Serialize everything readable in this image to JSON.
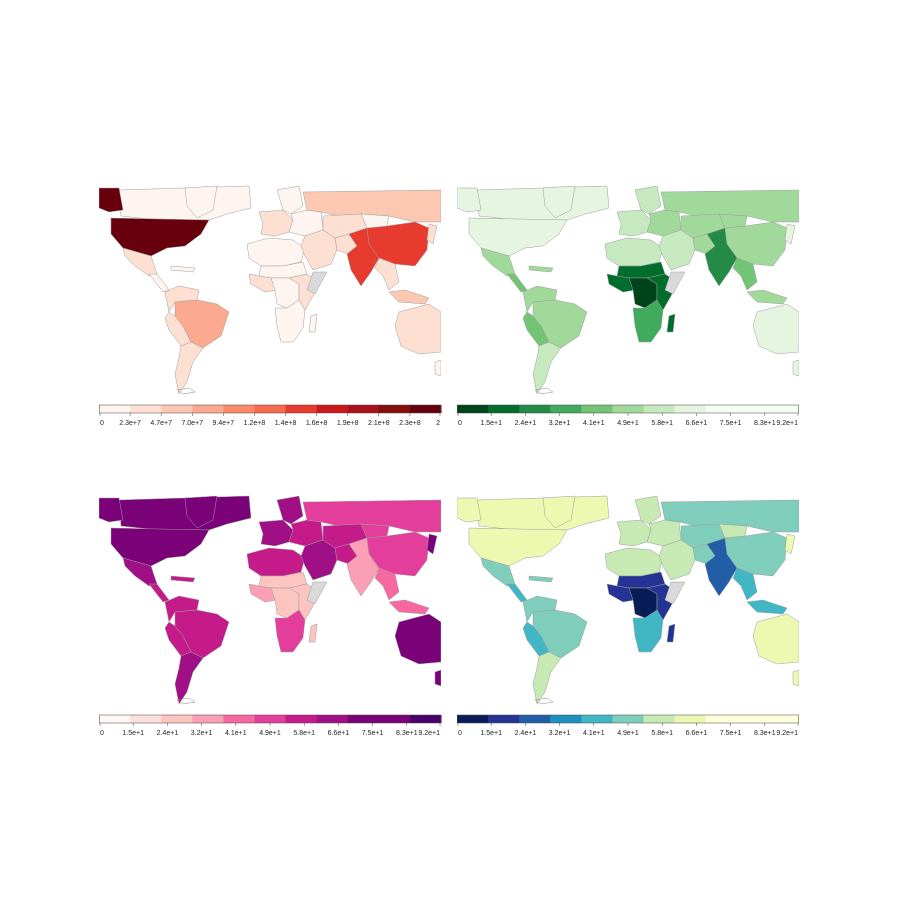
{
  "panels": [
    {
      "id": "total",
      "scheme": "reds",
      "colors": {
        "bins": [
          "#fff5f0",
          "#fee0d2",
          "#fcc8b2",
          "#fcaa8f",
          "#fc8a6a",
          "#f76a4b",
          "#e63b2e",
          "#cb181d",
          "#ab1118",
          "#880d0d",
          "#67000d"
        ],
        "ocean": "#ffffff",
        "border": "#9e9e9e",
        "missing": "#d9d9d9"
      },
      "tick_labels": [
        "0",
        "2.3e+7",
        "4.7e+7",
        "7.0e+7",
        "9.4e+7",
        "1.2e+8",
        "1.4e+8",
        "1.6e+8",
        "1.9e+8",
        "2.1e+8",
        "2.3e+8",
        "2"
      ],
      "regions": [
        {
          "name": "canada",
          "bin": 0
        },
        {
          "name": "alaska",
          "bin": 10
        },
        {
          "name": "greenland",
          "bin": 0
        },
        {
          "name": "usa",
          "bin": 10
        },
        {
          "name": "mexico",
          "bin": 1
        },
        {
          "name": "central-america",
          "bin": 0
        },
        {
          "name": "caribbean",
          "bin": 0
        },
        {
          "name": "colombia-venezuela",
          "bin": 1
        },
        {
          "name": "brazil",
          "bin": 3
        },
        {
          "name": "peru-bolivia",
          "bin": 1
        },
        {
          "name": "southern-cone",
          "bin": 1
        },
        {
          "name": "western-europe",
          "bin": 1
        },
        {
          "name": "scandinavia",
          "bin": 0
        },
        {
          "name": "eastern-europe",
          "bin": 0
        },
        {
          "name": "russia",
          "bin": 2
        },
        {
          "name": "kazakhstan-central-asia",
          "bin": 1
        },
        {
          "name": "north-africa",
          "bin": 0
        },
        {
          "name": "sahel",
          "bin": 0
        },
        {
          "name": "west-africa",
          "bin": 1
        },
        {
          "name": "central-africa",
          "bin": 0
        },
        {
          "name": "east-africa",
          "bin": 1
        },
        {
          "name": "southern-africa",
          "bin": 0
        },
        {
          "name": "madagascar",
          "bin": 0
        },
        {
          "name": "middle-east",
          "bin": 1
        },
        {
          "name": "iran",
          "bin": 1
        },
        {
          "name": "south-asia",
          "bin": 6
        },
        {
          "name": "china",
          "bin": 6
        },
        {
          "name": "mongolia",
          "bin": 0
        },
        {
          "name": "southeast-asia",
          "bin": 1
        },
        {
          "name": "japan",
          "bin": 1
        },
        {
          "name": "indonesia",
          "bin": 2
        },
        {
          "name": "australia",
          "bin": 1
        },
        {
          "name": "new-zealand",
          "bin": 0
        },
        {
          "name": "somalia",
          "bin": -1
        }
      ]
    },
    {
      "id": "percent-a",
      "scheme": "greens-reversed",
      "colors": {
        "bins": [
          "#00441b",
          "#006d2c",
          "#238b45",
          "#41ab5d",
          "#74c476",
          "#a1d99b",
          "#c7e9c0",
          "#e5f5e0",
          "#f7fcf5",
          "#f7fcf5",
          "#f7fcf5"
        ],
        "ocean": "#ffffff",
        "border": "#9e9e9e",
        "missing": "#d9d9d9"
      },
      "tick_labels": [
        "0",
        "1.5e+1",
        "2.4e+1",
        "3.2e+1",
        "4.1e+1",
        "4.9e+1",
        "5.8e+1",
        "6.6e+1",
        "7.5e+1",
        "8.3e+1",
        "9.2e+1"
      ],
      "regions": [
        {
          "name": "canada",
          "bin": 7
        },
        {
          "name": "alaska",
          "bin": 7
        },
        {
          "name": "greenland",
          "bin": 7
        },
        {
          "name": "usa",
          "bin": 7
        },
        {
          "name": "mexico",
          "bin": 5
        },
        {
          "name": "central-america",
          "bin": 4
        },
        {
          "name": "caribbean",
          "bin": 5
        },
        {
          "name": "colombia-venezuela",
          "bin": 5
        },
        {
          "name": "brazil",
          "bin": 5
        },
        {
          "name": "peru-bolivia",
          "bin": 4
        },
        {
          "name": "southern-cone",
          "bin": 6
        },
        {
          "name": "western-europe",
          "bin": 6
        },
        {
          "name": "scandinavia",
          "bin": 6
        },
        {
          "name": "eastern-europe",
          "bin": 5
        },
        {
          "name": "russia",
          "bin": 5
        },
        {
          "name": "kazakhstan-central-asia",
          "bin": 5
        },
        {
          "name": "north-africa",
          "bin": 6
        },
        {
          "name": "sahel",
          "bin": 1
        },
        {
          "name": "west-africa",
          "bin": 1
        },
        {
          "name": "central-africa",
          "bin": 0
        },
        {
          "name": "east-africa",
          "bin": 1
        },
        {
          "name": "southern-africa",
          "bin": 3
        },
        {
          "name": "madagascar",
          "bin": 1
        },
        {
          "name": "middle-east",
          "bin": 6
        },
        {
          "name": "iran",
          "bin": 5
        },
        {
          "name": "south-asia",
          "bin": 2
        },
        {
          "name": "china",
          "bin": 5
        },
        {
          "name": "mongolia",
          "bin": 5
        },
        {
          "name": "southeast-asia",
          "bin": 4
        },
        {
          "name": "japan",
          "bin": 7
        },
        {
          "name": "indonesia",
          "bin": 5
        },
        {
          "name": "australia",
          "bin": 7
        },
        {
          "name": "new-zealand",
          "bin": 7
        },
        {
          "name": "somalia",
          "bin": -1
        }
      ]
    },
    {
      "id": "percent-b",
      "scheme": "rdpu",
      "colors": {
        "bins": [
          "#fff7f3",
          "#fde0dd",
          "#fcc5c0",
          "#fa9fb5",
          "#f768a1",
          "#e33e9c",
          "#c51b8a",
          "#a00f86",
          "#7a0177",
          "#7a0177",
          "#49006a"
        ],
        "ocean": "#ffffff",
        "border": "#9e9e9e",
        "missing": "#d9d9d9"
      },
      "tick_labels": [
        "0",
        "1.5e+1",
        "2.4e+1",
        "3.2e+1",
        "4.1e+1",
        "4.9e+1",
        "5.8e+1",
        "6.6e+1",
        "7.5e+1",
        "8.3e+1",
        "9.2e+1"
      ],
      "regions": [
        {
          "name": "canada",
          "bin": 8
        },
        {
          "name": "alaska",
          "bin": 8
        },
        {
          "name": "greenland",
          "bin": 8
        },
        {
          "name": "usa",
          "bin": 8
        },
        {
          "name": "mexico",
          "bin": 7
        },
        {
          "name": "central-america",
          "bin": 6
        },
        {
          "name": "caribbean",
          "bin": 6
        },
        {
          "name": "colombia-venezuela",
          "bin": 6
        },
        {
          "name": "brazil",
          "bin": 6
        },
        {
          "name": "peru-bolivia",
          "bin": 6
        },
        {
          "name": "southern-cone",
          "bin": 7
        },
        {
          "name": "western-europe",
          "bin": 7
        },
        {
          "name": "scandinavia",
          "bin": 7
        },
        {
          "name": "eastern-europe",
          "bin": 6
        },
        {
          "name": "russia",
          "bin": 5
        },
        {
          "name": "kazakhstan-central-asia",
          "bin": 6
        },
        {
          "name": "north-africa",
          "bin": 6
        },
        {
          "name": "sahel",
          "bin": 2
        },
        {
          "name": "west-africa",
          "bin": 3
        },
        {
          "name": "central-africa",
          "bin": 2
        },
        {
          "name": "east-africa",
          "bin": 2
        },
        {
          "name": "southern-africa",
          "bin": 5
        },
        {
          "name": "madagascar",
          "bin": 2
        },
        {
          "name": "middle-east",
          "bin": 7
        },
        {
          "name": "iran",
          "bin": 6
        },
        {
          "name": "south-asia",
          "bin": 3
        },
        {
          "name": "china",
          "bin": 5
        },
        {
          "name": "mongolia",
          "bin": 5
        },
        {
          "name": "southeast-asia",
          "bin": 4
        },
        {
          "name": "japan",
          "bin": 8
        },
        {
          "name": "indonesia",
          "bin": 4
        },
        {
          "name": "australia",
          "bin": 8
        },
        {
          "name": "new-zealand",
          "bin": 8
        },
        {
          "name": "somalia",
          "bin": -1
        }
      ]
    },
    {
      "id": "percent-c",
      "scheme": "ylgnbu-reversed",
      "colors": {
        "bins": [
          "#081d58",
          "#253494",
          "#225ea8",
          "#1d91c0",
          "#41b6c4",
          "#7fcdbb",
          "#c7e9b4",
          "#edf8b1",
          "#ffffd9",
          "#ffffd9",
          "#ffffd9"
        ],
        "ocean": "#ffffff",
        "border": "#9e9e9e",
        "missing": "#d9d9d9"
      },
      "tick_labels": [
        "0",
        "1.5e+1",
        "2.4e+1",
        "3.2e+1",
        "4.1e+1",
        "4.9e+1",
        "5.8e+1",
        "6.6e+1",
        "7.5e+1",
        "8.3e+1",
        "9.2e+1"
      ],
      "regions": [
        {
          "name": "canada",
          "bin": 7
        },
        {
          "name": "alaska",
          "bin": 7
        },
        {
          "name": "greenland",
          "bin": 7
        },
        {
          "name": "usa",
          "bin": 7
        },
        {
          "name": "mexico",
          "bin": 5
        },
        {
          "name": "central-america",
          "bin": 4
        },
        {
          "name": "caribbean",
          "bin": 5
        },
        {
          "name": "colombia-venezuela",
          "bin": 5
        },
        {
          "name": "brazil",
          "bin": 5
        },
        {
          "name": "peru-bolivia",
          "bin": 4
        },
        {
          "name": "southern-cone",
          "bin": 6
        },
        {
          "name": "western-europe",
          "bin": 6
        },
        {
          "name": "scandinavia",
          "bin": 6
        },
        {
          "name": "eastern-europe",
          "bin": 6
        },
        {
          "name": "russia",
          "bin": 5
        },
        {
          "name": "kazakhstan-central-asia",
          "bin": 5
        },
        {
          "name": "north-africa",
          "bin": 6
        },
        {
          "name": "sahel",
          "bin": 1
        },
        {
          "name": "west-africa",
          "bin": 1
        },
        {
          "name": "central-africa",
          "bin": 0
        },
        {
          "name": "east-africa",
          "bin": 1
        },
        {
          "name": "southern-africa",
          "bin": 4
        },
        {
          "name": "madagascar",
          "bin": 1
        },
        {
          "name": "middle-east",
          "bin": 6
        },
        {
          "name": "iran",
          "bin": 5
        },
        {
          "name": "south-asia",
          "bin": 2
        },
        {
          "name": "china",
          "bin": 5
        },
        {
          "name": "mongolia",
          "bin": 6
        },
        {
          "name": "southeast-asia",
          "bin": 4
        },
        {
          "name": "japan",
          "bin": 7
        },
        {
          "name": "indonesia",
          "bin": 4
        },
        {
          "name": "australia",
          "bin": 7
        },
        {
          "name": "new-zealand",
          "bin": 7
        },
        {
          "name": "somalia",
          "bin": -1
        }
      ]
    }
  ]
}
